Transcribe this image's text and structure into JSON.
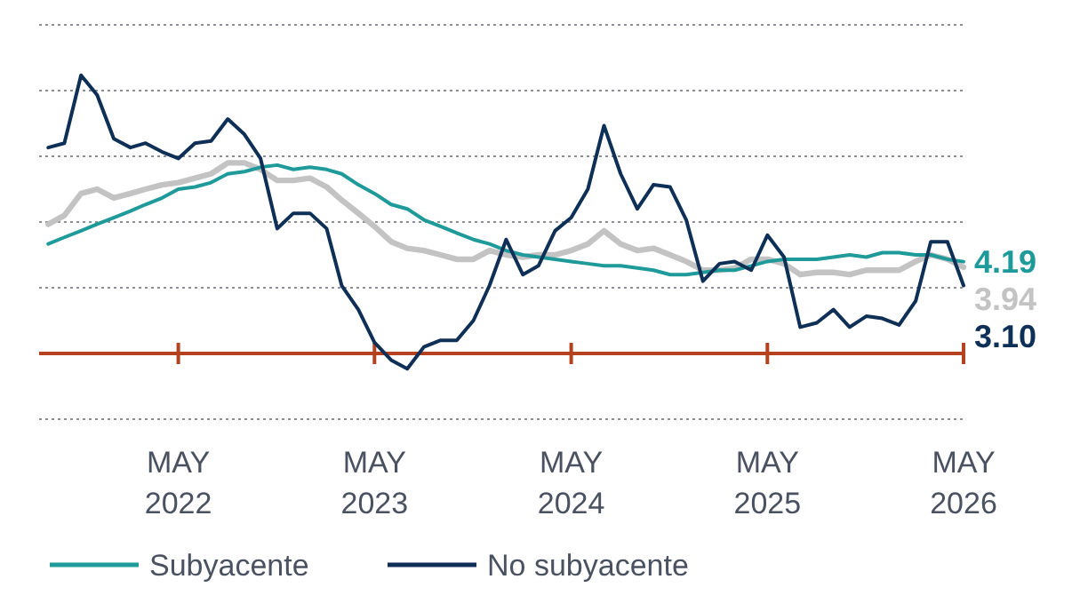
{
  "chart_data": {
    "type": "line",
    "x": [
      "2021-09",
      "2021-10",
      "2021-11",
      "2021-12",
      "2022-01",
      "2022-02",
      "2022-03",
      "2022-04",
      "2022-05",
      "2022-06",
      "2022-07",
      "2022-08",
      "2022-09",
      "2022-10",
      "2022-11",
      "2022-12",
      "2023-01",
      "2023-02",
      "2023-03",
      "2023-04",
      "2023-05",
      "2023-06",
      "2023-07",
      "2023-08",
      "2023-09",
      "2023-10",
      "2023-11",
      "2023-12",
      "2024-01",
      "2024-02",
      "2024-03",
      "2024-04",
      "2024-05",
      "2024-06",
      "2024-07",
      "2024-08",
      "2024-09",
      "2024-10",
      "2024-11",
      "2024-12",
      "2025-01",
      "2025-02",
      "2025-03",
      "2025-04",
      "2025-05",
      "2025-06",
      "2025-07",
      "2025-08",
      "2025-09",
      "2025-10",
      "2025-11",
      "2025-12",
      "2026-01",
      "2026-02",
      "2026-03",
      "2026-04",
      "2026-05"
    ],
    "series": [
      {
        "color": "#c3c3c3",
        "values": [
          5.9,
          6.3,
          7.3,
          7.5,
          7.1,
          7.3,
          7.5,
          7.7,
          7.8,
          8.0,
          8.2,
          8.7,
          8.7,
          8.4,
          7.9,
          7.9,
          8.0,
          7.6,
          7.0,
          6.4,
          5.8,
          5.1,
          4.8,
          4.7,
          4.5,
          4.3,
          4.3,
          4.7,
          4.5,
          4.4,
          4.5,
          4.5,
          4.7,
          5.0,
          5.6,
          5.0,
          4.7,
          4.8,
          4.5,
          4.2,
          3.8,
          3.8,
          3.9,
          4.3,
          4.3,
          4.1,
          3.6,
          3.7,
          3.7,
          3.6,
          3.8,
          3.8,
          3.8,
          4.2,
          4.5,
          4.3,
          3.94
        ],
        "value_labels": [
          null,
          null,
          null,
          null,
          null,
          null,
          null,
          null,
          null,
          null,
          null,
          null,
          null,
          null,
          null,
          null,
          null,
          null,
          null,
          null,
          null,
          null,
          null,
          null,
          null,
          null,
          null,
          null,
          null,
          null,
          null,
          null,
          null,
          null,
          null,
          null,
          null,
          null,
          null,
          null,
          null,
          null,
          null,
          null,
          null,
          null,
          null,
          null,
          null,
          null,
          null,
          null,
          null,
          null,
          null,
          null,
          "3.94"
        ]
      },
      {
        "name": "Subyacente",
        "color": "#1f9a9a",
        "values": [
          5.0,
          5.3,
          5.6,
          5.9,
          6.2,
          6.5,
          6.8,
          7.1,
          7.5,
          7.6,
          7.8,
          8.2,
          8.3,
          8.5,
          8.6,
          8.4,
          8.5,
          8.4,
          8.2,
          7.7,
          7.3,
          6.8,
          6.6,
          6.1,
          5.8,
          5.5,
          5.2,
          5.0,
          4.7,
          4.5,
          4.4,
          4.3,
          4.2,
          4.1,
          4.0,
          4.0,
          3.9,
          3.8,
          3.6,
          3.6,
          3.7,
          3.8,
          3.8,
          4.0,
          4.2,
          4.3,
          4.3,
          4.3,
          4.4,
          4.5,
          4.4,
          4.6,
          4.6,
          4.5,
          4.5,
          4.3,
          4.19
        ],
        "value_labels": [
          null,
          null,
          null,
          null,
          null,
          null,
          null,
          null,
          null,
          null,
          null,
          null,
          null,
          null,
          null,
          null,
          null,
          null,
          null,
          null,
          null,
          null,
          null,
          null,
          null,
          null,
          null,
          null,
          null,
          null,
          null,
          null,
          null,
          null,
          null,
          null,
          null,
          null,
          null,
          null,
          null,
          null,
          null,
          null,
          null,
          null,
          null,
          null,
          null,
          null,
          null,
          null,
          null,
          null,
          null,
          null,
          "4.19"
        ]
      },
      {
        "name": "No subyacente",
        "color": "#0e2f56",
        "values": [
          9.4,
          9.6,
          12.7,
          11.8,
          9.8,
          9.4,
          9.6,
          9.2,
          8.9,
          9.6,
          9.7,
          10.7,
          10.0,
          8.9,
          5.7,
          6.4,
          6.4,
          5.7,
          3.1,
          2.0,
          0.5,
          -0.3,
          -0.7,
          0.3,
          0.6,
          0.6,
          1.5,
          3.1,
          5.2,
          3.6,
          4.0,
          5.6,
          6.2,
          7.5,
          10.4,
          8.2,
          6.6,
          7.7,
          7.6,
          6.1,
          3.3,
          4.1,
          4.2,
          3.8,
          5.4,
          4.4,
          1.2,
          1.4,
          2.0,
          1.2,
          1.7,
          1.6,
          1.3,
          2.4,
          5.1,
          5.1,
          3.1
        ],
        "value_labels": [
          null,
          null,
          null,
          null,
          null,
          null,
          null,
          null,
          null,
          null,
          null,
          null,
          null,
          null,
          null,
          null,
          null,
          null,
          null,
          null,
          null,
          null,
          null,
          null,
          null,
          null,
          null,
          null,
          null,
          null,
          null,
          null,
          null,
          null,
          null,
          null,
          null,
          null,
          null,
          null,
          null,
          null,
          null,
          null,
          null,
          null,
          null,
          null,
          null,
          null,
          null,
          null,
          null,
          null,
          null,
          null,
          "3.10"
        ]
      }
    ],
    "xlim": [
      "2021-08-15",
      "2026-05"
    ],
    "xticks": [
      {
        "value": "2022-05",
        "label": "MAY\n2022"
      },
      {
        "value": "2023-05",
        "label": "MAY\n2023"
      },
      {
        "value": "2024-05",
        "label": "MAY\n2024"
      },
      {
        "value": "2025-05",
        "label": "MAY\n2025"
      },
      {
        "value": "2026-05",
        "label": "MAY\n2026"
      }
    ],
    "ylim": [
      -3,
      15
    ],
    "ref_lines": [
      {
        "axis": "y",
        "value": 0,
        "color": "#b5411f"
      }
    ],
    "yticks": [
      {
        "value": -3,
        "label": null
      },
      {
        "value": 0,
        "label": null
      },
      {
        "value": 3,
        "label": null
      },
      {
        "value": 6,
        "label": null
      },
      {
        "value": 9,
        "label": null
      },
      {
        "value": 12,
        "label": null
      },
      {
        "value": 15,
        "label": null
      }
    ],
    "tick_labels": "x",
    "grid": "y",
    "legend": "bottom",
    "line_style": "solid"
  }
}
